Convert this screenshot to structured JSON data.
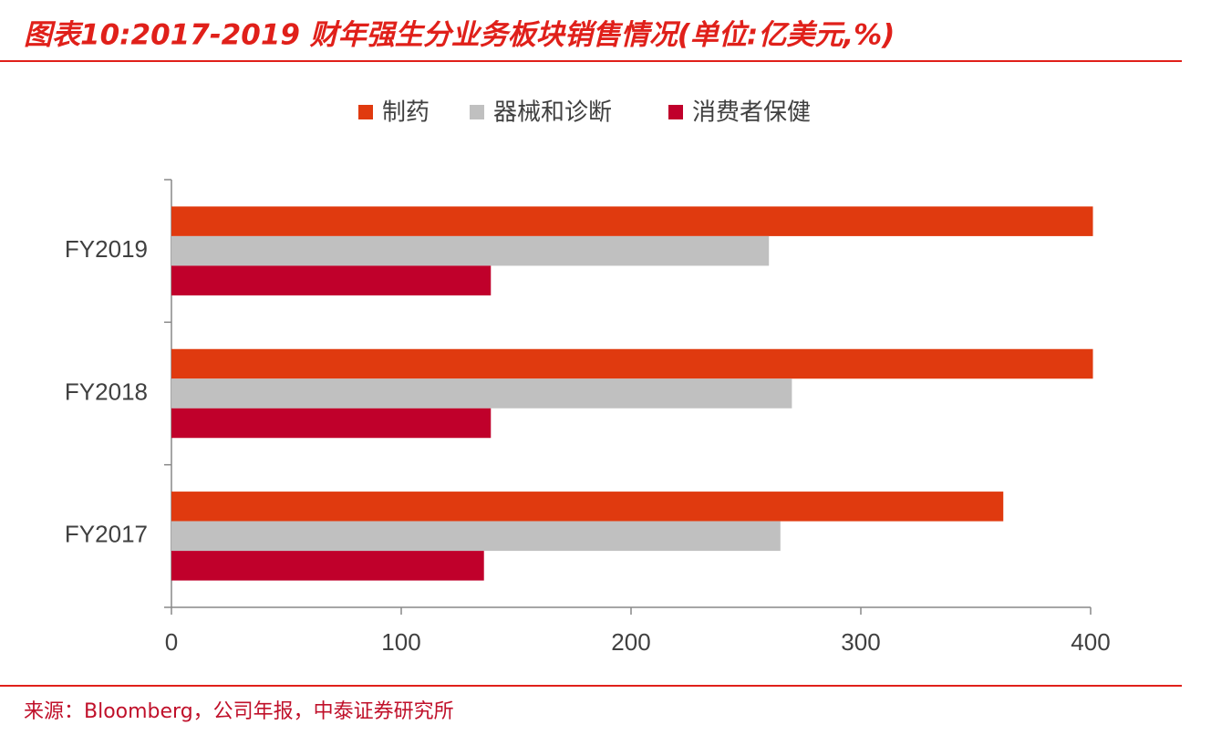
{
  "chart_data": {
    "type": "hbar",
    "title": "图表10:2017-2019 财年强生分业务板块销售情况(单位:亿美元,%)",
    "source": "来源：Bloomberg，公司年报，中泰证券研究所",
    "categories": [
      "FY2019",
      "FY2018",
      "FY2017"
    ],
    "series": [
      {
        "name": "制药",
        "color": "#e03a0f",
        "values": [
          401,
          401,
          362
        ]
      },
      {
        "name": "器械和诊断",
        "color": "#c0c0c0",
        "values": [
          260,
          270,
          265
        ]
      },
      {
        "name": "消费者保健",
        "color": "#c0002b",
        "values": [
          139,
          139,
          136
        ]
      }
    ],
    "xlim": [
      0,
      400
    ],
    "xticks": [
      0,
      100,
      200,
      300,
      400
    ],
    "grid": false,
    "legend": "top"
  }
}
